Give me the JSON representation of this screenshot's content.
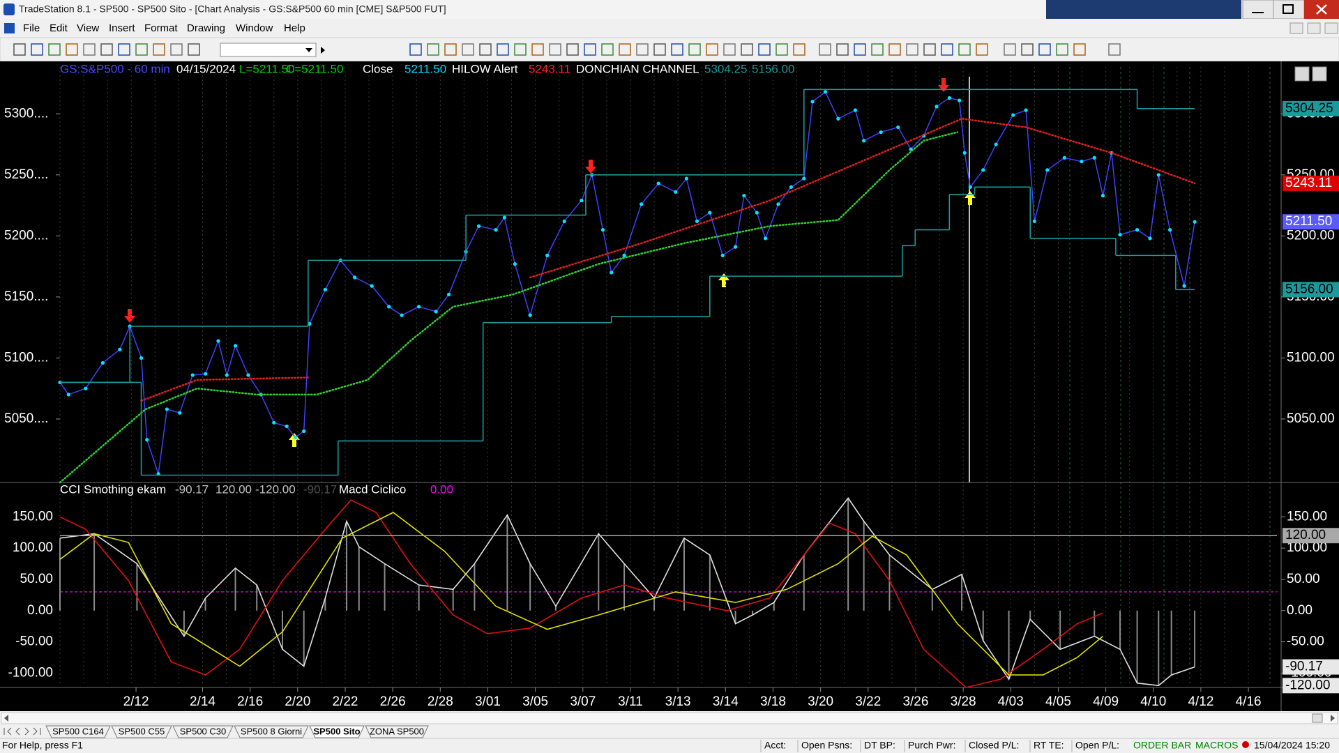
{
  "window": {
    "title": "TradeStation 8.1 - SP500 - SP500 Sito - [Chart Analysis - GS:S&P500  60 min  [CME] S&P500 FUT]",
    "menu": [
      "File",
      "Edit",
      "View",
      "Insert",
      "Format",
      "Drawing",
      "Window",
      "Help"
    ]
  },
  "chart_data": [
    {
      "type": "line",
      "legend": [
        {
          "text": "GS:S&P500 - 60 min",
          "color": "#4a4aff"
        },
        {
          "text": "04/15/2024",
          "color": "#ffffff"
        },
        {
          "text": "L=5211.50",
          "color": "#00d000"
        },
        {
          "text": "C=5211.50",
          "color": "#00d000"
        },
        {
          "text": "Close",
          "color": "#ffffff"
        },
        {
          "text": "5211.50",
          "color": "#00d8ff"
        },
        {
          "text": "HILOW Alert",
          "color": "#ffffff"
        },
        {
          "text": "5243.11",
          "color": "#ff2020"
        },
        {
          "text": "DONCHIAN CHANNEL",
          "color": "#ffffff"
        },
        {
          "text": "5304.25",
          "color": "#1a9a9a"
        },
        {
          "text": "5156.00",
          "color": "#1a9a9a"
        }
      ],
      "xlim": [
        0,
        256
      ],
      "xticks": [
        {
          "value": 16,
          "label": "2/12"
        },
        {
          "value": 30,
          "label": "2/14"
        },
        {
          "value": 40,
          "label": "2/16"
        },
        {
          "value": 50,
          "label": "2/20"
        },
        {
          "value": 60,
          "label": "2/22"
        },
        {
          "value": 70,
          "label": "2/26"
        },
        {
          "value": 80,
          "label": "2/28"
        },
        {
          "value": 90,
          "label": "3/01"
        },
        {
          "value": 100,
          "label": "3/05"
        },
        {
          "value": 110,
          "label": "3/07"
        },
        {
          "value": 120,
          "label": "3/11"
        },
        {
          "value": 130,
          "label": "3/13"
        },
        {
          "value": 140,
          "label": "3/14"
        },
        {
          "value": 150,
          "label": "3/18"
        },
        {
          "value": 160,
          "label": "3/20"
        },
        {
          "value": 170,
          "label": "3/22"
        },
        {
          "value": 180,
          "label": "3/26"
        },
        {
          "value": 190,
          "label": "3/28"
        },
        {
          "value": 200,
          "label": "4/03"
        },
        {
          "value": 210,
          "label": "4/05"
        },
        {
          "value": 220,
          "label": "4/09"
        },
        {
          "value": 230,
          "label": "4/10"
        },
        {
          "value": 240,
          "label": "4/12"
        },
        {
          "value": 250,
          "label": "4/16"
        }
      ],
      "ylim": [
        4998,
        5343
      ],
      "yticks": [
        {
          "value": 5050,
          "label": "5050...."
        },
        {
          "value": 5100,
          "label": "5100...."
        },
        {
          "value": 5150,
          "label": "5150...."
        },
        {
          "value": 5200,
          "label": "5200...."
        },
        {
          "value": 5250,
          "label": "5250...."
        },
        {
          "value": 5300,
          "label": "5300...."
        }
      ],
      "y2lim": [
        4998,
        5343
      ],
      "y2ticks": [
        {
          "value": 5050,
          "label": "5050.00"
        },
        {
          "value": 5100,
          "label": "5100.00"
        },
        {
          "value": 5150,
          "label": "5150.00"
        },
        {
          "value": 5200,
          "label": "5200.00"
        },
        {
          "value": 5250,
          "label": "5250.00"
        },
        {
          "value": 5300,
          "label": "5300.00"
        }
      ],
      "grid": false,
      "series": [
        {
          "style": "line-dots",
          "color": "#4040ff",
          "marker_color": "#00e8ff",
          "x": [
            0,
            1.8,
            5.4,
            9,
            12.6,
            14.7,
            17.1,
            18.3,
            20.7,
            22.5,
            25.2,
            27.9,
            30.6,
            33.3,
            35.1,
            36.9,
            39.6,
            42.3,
            45,
            47.7,
            49.5,
            51.3,
            52.5,
            55.8,
            59,
            62,
            65.6,
            69.2,
            71.9,
            75.5,
            79.1,
            81.8,
            85.4,
            88.1,
            91.7,
            93.5,
            95.7,
            98.9,
            102.5,
            106.1,
            109.7,
            111.9,
            114.2,
            116,
            118.7,
            122.3,
            125.9,
            129.5,
            131.8,
            134,
            136.7,
            139.4,
            142.1,
            143.9,
            146.6,
            148.4,
            151.1,
            153.8,
            156.5,
            158.3,
            161,
            163.7,
            167.3,
            169.1,
            172.7,
            176.3,
            179,
            181.7,
            184.4,
            187.1,
            189.2,
            190.3,
            191.5,
            194.2,
            196.9,
            200.5,
            203.2,
            205,
            207.7,
            211.3,
            214.9,
            217.6,
            219.4,
            221.2,
            223,
            226.6,
            229.3,
            231.1,
            233.5,
            236.5,
            238.7
          ],
          "values": [
            5080,
            5070,
            5075,
            5096,
            5107,
            5126,
            5100,
            5033,
            5005,
            5058,
            5055,
            5086,
            5087,
            5114,
            5086,
            5110,
            5086,
            5070,
            5047,
            5044,
            5035,
            5040,
            5128,
            5156,
            5180,
            5166,
            5159,
            5142,
            5135,
            5142,
            5138,
            5152,
            5187,
            5208,
            5205,
            5215,
            5177,
            5135,
            5184,
            5212,
            5229,
            5250,
            5205,
            5170,
            5184,
            5226,
            5243,
            5236,
            5247,
            5212,
            5219,
            5184,
            5191,
            5233,
            5219,
            5198,
            5226,
            5240,
            5247,
            5310,
            5318,
            5296,
            5303,
            5278,
            5285,
            5289,
            5271,
            5282,
            5306,
            5313,
            5311,
            5268,
            5240,
            5254,
            5275,
            5299,
            5303,
            5212,
            5254,
            5264,
            5261,
            5264,
            5233,
            5268,
            5201,
            5205,
            5198,
            5250,
            5205,
            5159,
            5211.5
          ]
        },
        {
          "style": "dotted",
          "color": "#e02020",
          "x": [
            17.1,
            28.8,
            52.2,
            80,
            98.9,
            122.3,
            149.3,
            189.7,
            203.2,
            221.2,
            238.7
          ],
          "values": [
            5065,
            5082,
            5084,
            null,
            5166,
            5194,
            5229,
            5296,
            5289,
            5268,
            5243.11
          ]
        },
        {
          "style": "dotted",
          "color": "#30d030",
          "x": [
            0,
            18,
            28.8,
            41.4,
            54,
            64.7,
            73.7,
            82.7,
            95.3,
            113.3,
            131.3,
            149.3,
            163.7,
            174.5,
            181.7,
            188.8
          ],
          "values": [
            4998,
            5058,
            5075,
            5070,
            5070,
            5082,
            5114,
            5142,
            5152,
            5177,
            5194,
            5208,
            5213,
            5254,
            5278,
            5285
          ]
        },
        {
          "style": "step",
          "color": "#1a9a9a",
          "x": [
            0,
            14.7,
            52.2,
            85.4,
            110.6,
            156.5,
            226.6,
            238.7
          ],
          "values": [
            5080,
            5126,
            5180,
            5217,
            5250,
            5320,
            5304.25,
            5304.25
          ]
        },
        {
          "style": "step",
          "color": "#1a9a9a",
          "x": [
            0,
            17.1,
            58.5,
            89,
            116,
            136.7,
            177.2,
            179.9,
            187.1,
            192.4,
            204.1,
            222.1,
            234.7,
            238.7
          ],
          "values": [
            5080,
            5004,
            5032,
            5129,
            5134,
            5167,
            5192,
            5205,
            5234,
            5240,
            5198,
            5184,
            5156,
            5156
          ]
        }
      ],
      "tags": [
        {
          "value": 5304.25,
          "label": "5304.25",
          "fill": "#1a9a9a",
          "text_color": "#000000"
        },
        {
          "value": 5243.11,
          "label": "5243.11",
          "fill": "#e00000",
          "text_color": "#ffffff"
        },
        {
          "value": 5211.5,
          "label": "5211.50",
          "fill": "#5a5aff",
          "text_color": "#ffffff"
        },
        {
          "value": 5156,
          "label": "5156.00",
          "fill": "#1a9a9a",
          "text_color": "#000000"
        }
      ]
    },
    {
      "type": "line",
      "legend": [
        {
          "text": "CCI Smothing ekam",
          "color": "#ffffff"
        },
        {
          "text": "-90.17",
          "color": "#c0c0c0"
        },
        {
          "text": "120.00",
          "color": "#c0c0c0"
        },
        {
          "text": "-120.00",
          "color": "#c0c0c0"
        },
        {
          "text": "-90.17",
          "color": "#505050"
        },
        {
          "text": "Macd Ciclico",
          "color": "#ffffff"
        },
        {
          "text": "0.00",
          "color": "#ff00ff"
        }
      ],
      "ylim": [
        -123,
        205
      ],
      "yticks": [
        {
          "value": 150,
          "label": "150.00"
        },
        {
          "value": 100,
          "label": "100.00"
        },
        {
          "value": 50,
          "label": "50.00"
        },
        {
          "value": 0,
          "label": "0.00"
        },
        {
          "value": -50,
          "label": "-50.00"
        },
        {
          "value": -100,
          "label": "-100.00"
        }
      ],
      "grid": false,
      "series": [
        {
          "style": "histogram-line",
          "color": "#e0e0e0",
          "bar_color": "#8a8a8a",
          "x": [
            0,
            7.2,
            16.2,
            26.1,
            30.6,
            36.9,
            41.4,
            46.8,
            51.3,
            55.8,
            60.3,
            62.9,
            68.3,
            75.5,
            82.7,
            87.2,
            94.1,
            98.9,
            104.3,
            113.3,
            118.7,
            125,
            131.3,
            136.7,
            142.1,
            145.7,
            150.2,
            156.5,
            165.8,
            169.1,
            174.5,
            183.5,
            189.7,
            194.2,
            199.6,
            204.1,
            210.4,
            217.6,
            223,
            226.6,
            231.1,
            233.8,
            238.7
          ],
          "values": [
            116,
            123,
            75,
            -41,
            20,
            68,
            41,
            -62,
            -89,
            20,
            143,
            102,
            75,
            41,
            34,
            75,
            153,
            75,
            7,
            123,
            75,
            20,
            116,
            89,
            -21,
            -7,
            13,
            89,
            180,
            143,
            89,
            34,
            58,
            -48,
            -110,
            -14,
            -62,
            -41,
            -62,
            -116,
            -120,
            -103,
            -90.17
          ]
        },
        {
          "style": "line",
          "color": "#e01010",
          "x": [
            0,
            5.4,
            14.4,
            23.4,
            30.6,
            37.8,
            46.8,
            55.8,
            61.2,
            66.5,
            73.7,
            82.7,
            89.9,
            98.9,
            109.7,
            118.7,
            127.7,
            140.3,
            149.3,
            156.5,
            161.9,
            167.3,
            174.5,
            181.7,
            190.6,
            197.8,
            206.8,
            214,
            219.4
          ],
          "values": [
            150,
            130,
            48,
            -82,
            -103,
            -62,
            48,
            130,
            177,
            157,
            75,
            -7,
            -37,
            -28,
            20,
            41,
            20,
            0,
            20,
            89,
            140,
            123,
            48,
            -62,
            -123,
            -110,
            -62,
            -21,
            -4
          ]
        },
        {
          "style": "line",
          "color": "#e0e000",
          "x": [
            0,
            7.2,
            14.4,
            23.4,
            37.8,
            46.8,
            59.4,
            70.1,
            80.9,
            91.7,
            102.5,
            113.3,
            129.5,
            142.1,
            152.9,
            163.7,
            170.9,
            178.1,
            188.8,
            199.6,
            206.8,
            214,
            219.4
          ],
          "values": [
            82,
            123,
            109,
            -21,
            -89,
            -34,
            116,
            157,
            95,
            7,
            -30,
            -7,
            30,
            13,
            34,
            75,
            119,
            89,
            -21,
            -103,
            -103,
            -75,
            -41
          ]
        }
      ],
      "levels": [
        {
          "value": 30,
          "color": "#c000c0",
          "dashed": true
        }
      ],
      "tags": [
        {
          "value": 120,
          "label": "120.00",
          "fill": "#a8a8a8",
          "text_color": "#000000",
          "line": true
        },
        {
          "value": -90.17,
          "label": "-90.17",
          "fill": "#e8e8e8",
          "text_color": "#000000"
        },
        {
          "value": -120,
          "label": "-120.00",
          "fill": "#e8e8e8",
          "text_color": "#000000"
        }
      ]
    }
  ],
  "tabs": [
    {
      "label": "SP500 C164"
    },
    {
      "label": "SP500 C55"
    },
    {
      "label": "SP500 C30"
    },
    {
      "label": "SP500 8 Giorni"
    },
    {
      "label": "SP500 Sito",
      "active": true
    },
    {
      "label": "ZONA SP500"
    }
  ],
  "status": {
    "help": "For Help, press F1",
    "fields": [
      "Acct:",
      "Open Psns:",
      "DT BP:",
      "Purch Pwr:",
      "Closed P/L:",
      "RT TE:",
      "Open P/L:"
    ],
    "flags": [
      {
        "text": "ORDER BAR",
        "color": "#008000"
      },
      {
        "text": "MACROS",
        "color": "#008000"
      }
    ],
    "datetime": "15/04/2024 15:20"
  }
}
